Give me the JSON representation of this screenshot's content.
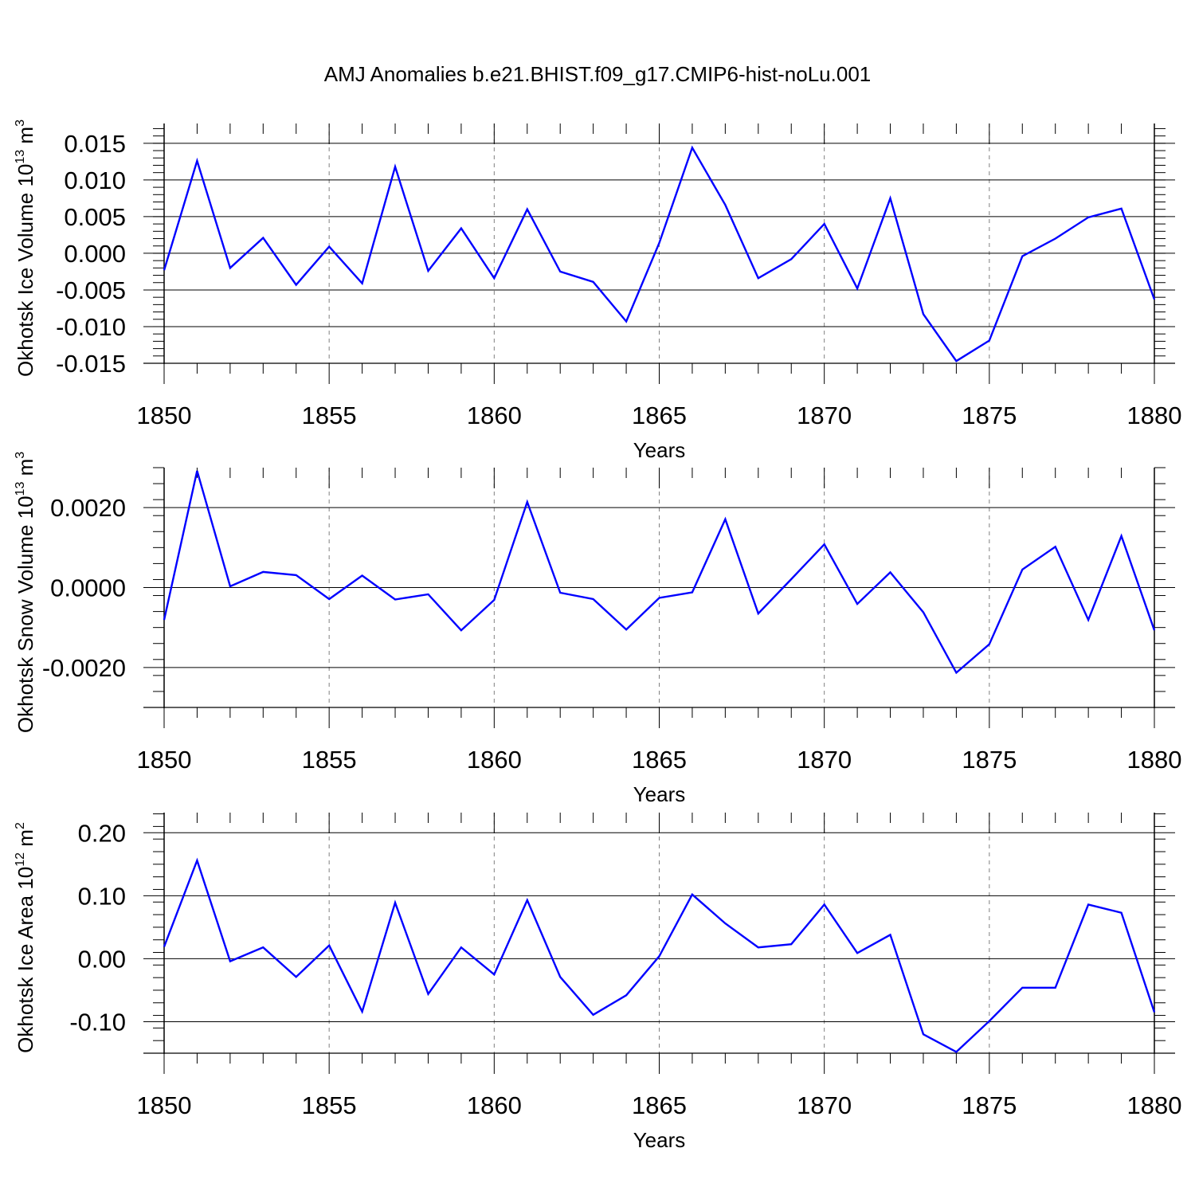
{
  "title": "AMJ Anomalies b.e21.BHIST.f09_g17.CMIP6-hist-noLu.001",
  "colors": {
    "line": "#0000ff",
    "axis": "#000000",
    "grid": "#808080"
  },
  "chart_data": [
    {
      "type": "line",
      "ylabel_main": "Okhotsk Ice Volume 10",
      "ylabel_sup": "13",
      "ylabel_unit": " m",
      "ylabel_unit_sup": "3",
      "xlabel": "Years",
      "xlim": [
        1850,
        1880
      ],
      "ylim": [
        -0.015,
        0.0177
      ],
      "y_major_ticks": [
        -0.015,
        -0.01,
        -0.005,
        0.0,
        0.005,
        0.01,
        0.015
      ],
      "y_tick_labels": [
        "-0.015",
        "-0.010",
        "-0.005",
        "0.000",
        "0.005",
        "0.010",
        "0.015"
      ],
      "x_ticks": [
        1850,
        1855,
        1860,
        1865,
        1870,
        1875,
        1880
      ],
      "x_tick_labels": [
        "1850",
        "1855",
        "1860",
        "1865",
        "1870",
        "1875",
        "1880"
      ],
      "gridlines_x": [
        1855,
        1860,
        1865,
        1870,
        1875
      ],
      "series": [
        {
          "x": [
            1850,
            1851,
            1852,
            1853,
            1854,
            1855,
            1856,
            1857,
            1858,
            1859,
            1860,
            1861,
            1862,
            1863,
            1864,
            1865,
            1866,
            1867,
            1868,
            1869,
            1870,
            1871,
            1872,
            1873,
            1874,
            1875,
            1876,
            1877,
            1878,
            1879,
            1880
          ],
          "values": [
            -0.0023,
            0.0126,
            -0.002,
            0.0021,
            -0.0043,
            0.0009,
            -0.0041,
            0.0118,
            -0.0024,
            0.0034,
            -0.0034,
            0.006,
            -0.0025,
            -0.0039,
            -0.0093,
            0.0014,
            0.0144,
            0.0066,
            -0.0034,
            -0.0008,
            0.004,
            -0.0048,
            0.0075,
            -0.0083,
            -0.0147,
            -0.0119,
            -0.0004,
            0.002,
            0.0049,
            0.0061,
            -0.0063
          ]
        }
      ]
    },
    {
      "type": "line",
      "ylabel_main": "Okhotsk Snow Volume 10",
      "ylabel_sup": "13",
      "ylabel_unit": " m",
      "ylabel_unit_sup": "3",
      "xlabel": "Years",
      "xlim": [
        1850,
        1880
      ],
      "ylim": [
        -0.003,
        0.003
      ],
      "y_major_ticks": [
        -0.002,
        0.0,
        0.002
      ],
      "y_tick_labels": [
        "-0.0020",
        "0.0000",
        "0.0020"
      ],
      "x_ticks": [
        1850,
        1855,
        1860,
        1865,
        1870,
        1875,
        1880
      ],
      "x_tick_labels": [
        "1850",
        "1855",
        "1860",
        "1865",
        "1870",
        "1875",
        "1880"
      ],
      "gridlines_x": [
        1855,
        1860,
        1865,
        1870,
        1875
      ],
      "series": [
        {
          "x": [
            1850,
            1851,
            1852,
            1853,
            1854,
            1855,
            1856,
            1857,
            1858,
            1859,
            1860,
            1861,
            1862,
            1863,
            1864,
            1865,
            1866,
            1867,
            1868,
            1869,
            1870,
            1871,
            1872,
            1873,
            1874,
            1875,
            1876,
            1877,
            1878,
            1879,
            1880
          ],
          "values": [
            -0.00081,
            0.00292,
            3e-05,
            0.00039,
            0.00031,
            -0.00029,
            0.0003,
            -0.0003,
            -0.00017,
            -0.00107,
            -0.00031,
            0.00214,
            -0.00013,
            -0.00029,
            -0.00105,
            -0.00026,
            -0.00012,
            0.00171,
            -0.00065,
            0.00021,
            0.00108,
            -0.00041,
            0.00038,
            -0.00062,
            -0.00213,
            -0.00142,
            0.00045,
            0.00102,
            -0.00081,
            0.00129,
            -0.00107
          ]
        }
      ]
    },
    {
      "type": "line",
      "ylabel_main": "Okhotsk Ice Area 10",
      "ylabel_sup": "12",
      "ylabel_unit": " m",
      "ylabel_unit_sup": "2",
      "xlabel": "Years",
      "xlim": [
        1850,
        1880
      ],
      "ylim": [
        -0.15,
        0.232
      ],
      "y_major_ticks": [
        -0.1,
        0.0,
        0.1,
        0.2
      ],
      "y_tick_labels": [
        "-0.10",
        "0.00",
        "0.10",
        "0.20"
      ],
      "x_ticks": [
        1850,
        1855,
        1860,
        1865,
        1870,
        1875,
        1880
      ],
      "x_tick_labels": [
        "1850",
        "1855",
        "1860",
        "1865",
        "1870",
        "1875",
        "1880"
      ],
      "gridlines_x": [
        1855,
        1860,
        1865,
        1870,
        1875
      ],
      "series": [
        {
          "x": [
            1850,
            1851,
            1852,
            1853,
            1854,
            1855,
            1856,
            1857,
            1858,
            1859,
            1860,
            1861,
            1862,
            1863,
            1864,
            1865,
            1866,
            1867,
            1868,
            1869,
            1870,
            1871,
            1872,
            1873,
            1874,
            1875,
            1876,
            1877,
            1878,
            1879,
            1880
          ],
          "values": [
            0.019,
            0.156,
            -0.004,
            0.018,
            -0.029,
            0.021,
            -0.084,
            0.089,
            -0.056,
            0.018,
            -0.025,
            0.093,
            -0.029,
            -0.089,
            -0.058,
            0.004,
            0.102,
            0.056,
            0.018,
            0.023,
            0.086,
            0.009,
            0.038,
            -0.12,
            -0.148,
            -0.099,
            -0.046,
            -0.046,
            0.086,
            0.073,
            -0.085
          ]
        }
      ]
    }
  ]
}
